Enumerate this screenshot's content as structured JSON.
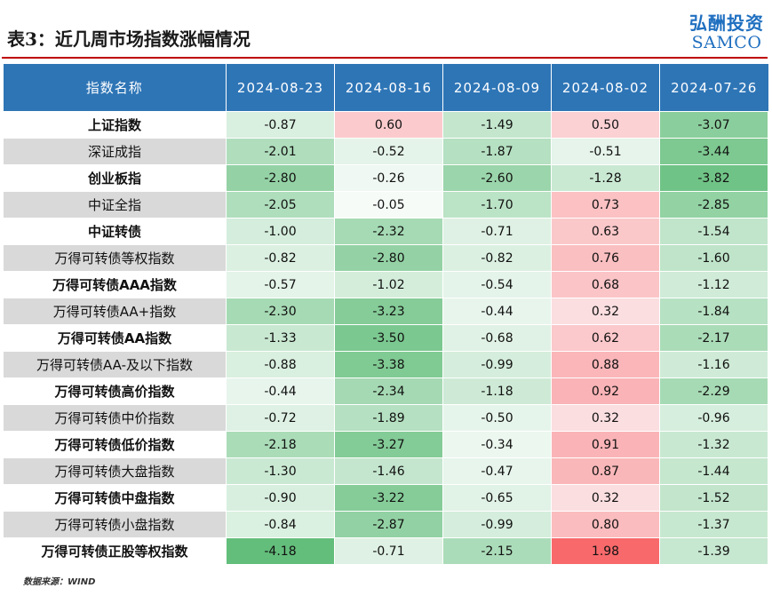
{
  "title": "表3：近几周市场指数涨幅情况",
  "logo": {
    "cn": "弘酬投资",
    "en": "SAMCO"
  },
  "colors": {
    "header_bg": "#2e75b6",
    "rule": "#c00000",
    "positive": "#f8696b",
    "negative": "#63be7b",
    "logo": "#1f6fc0"
  },
  "table": {
    "headers": [
      "指数名称",
      "2024-08-23",
      "2024-08-16",
      "2024-08-09",
      "2024-08-02",
      "2024-07-26"
    ],
    "rows": [
      {
        "name": "上证指数",
        "values": [
          "-0.87",
          "0.60",
          "-1.49",
          "0.50",
          "-3.07"
        ]
      },
      {
        "name": "深证成指",
        "values": [
          "-2.01",
          "-0.52",
          "-1.87",
          "-0.51",
          "-3.44"
        ]
      },
      {
        "name": "创业板指",
        "values": [
          "-2.80",
          "-0.26",
          "-2.60",
          "-1.28",
          "-3.82"
        ]
      },
      {
        "name": "中证全指",
        "values": [
          "-2.05",
          "-0.05",
          "-1.70",
          "0.73",
          "-2.85"
        ]
      },
      {
        "name": "中证转债",
        "values": [
          "-1.00",
          "-2.32",
          "-0.71",
          "0.63",
          "-1.54"
        ]
      },
      {
        "name": "万得可转债等权指数",
        "values": [
          "-0.82",
          "-2.80",
          "-0.82",
          "0.76",
          "-1.60"
        ]
      },
      {
        "name": "万得可转债AAA指数",
        "values": [
          "-0.57",
          "-1.02",
          "-0.54",
          "0.68",
          "-1.12"
        ]
      },
      {
        "name": "万得可转债AA+指数",
        "values": [
          "-2.30",
          "-3.23",
          "-0.44",
          "0.32",
          "-1.84"
        ]
      },
      {
        "name": "万得可转债AA指数",
        "values": [
          "-1.33",
          "-3.50",
          "-0.68",
          "0.62",
          "-2.17"
        ]
      },
      {
        "name": "万得可转债AA-及以下指数",
        "values": [
          "-0.88",
          "-3.38",
          "-0.99",
          "0.88",
          "-1.16"
        ]
      },
      {
        "name": "万得可转债高价指数",
        "values": [
          "-0.44",
          "-2.34",
          "-1.18",
          "0.92",
          "-2.29"
        ]
      },
      {
        "name": "万得可转债中价指数",
        "values": [
          "-0.72",
          "-1.89",
          "-0.50",
          "0.32",
          "-0.96"
        ]
      },
      {
        "name": "万得可转债低价指数",
        "values": [
          "-2.18",
          "-3.27",
          "-0.34",
          "0.91",
          "-1.32"
        ]
      },
      {
        "name": "万得可转债大盘指数",
        "values": [
          "-1.30",
          "-1.46",
          "-0.47",
          "0.87",
          "-1.44"
        ]
      },
      {
        "name": "万得可转债中盘指数",
        "values": [
          "-0.90",
          "-3.22",
          "-0.65",
          "0.32",
          "-1.52"
        ]
      },
      {
        "name": "万得可转债小盘指数",
        "values": [
          "-0.84",
          "-2.87",
          "-0.99",
          "0.80",
          "-1.37"
        ]
      },
      {
        "name": "万得可转债正股等权指数",
        "values": [
          "-4.18",
          "-0.71",
          "-2.15",
          "1.98",
          "-1.39"
        ]
      }
    ]
  },
  "source": "数据来源：WIND"
}
